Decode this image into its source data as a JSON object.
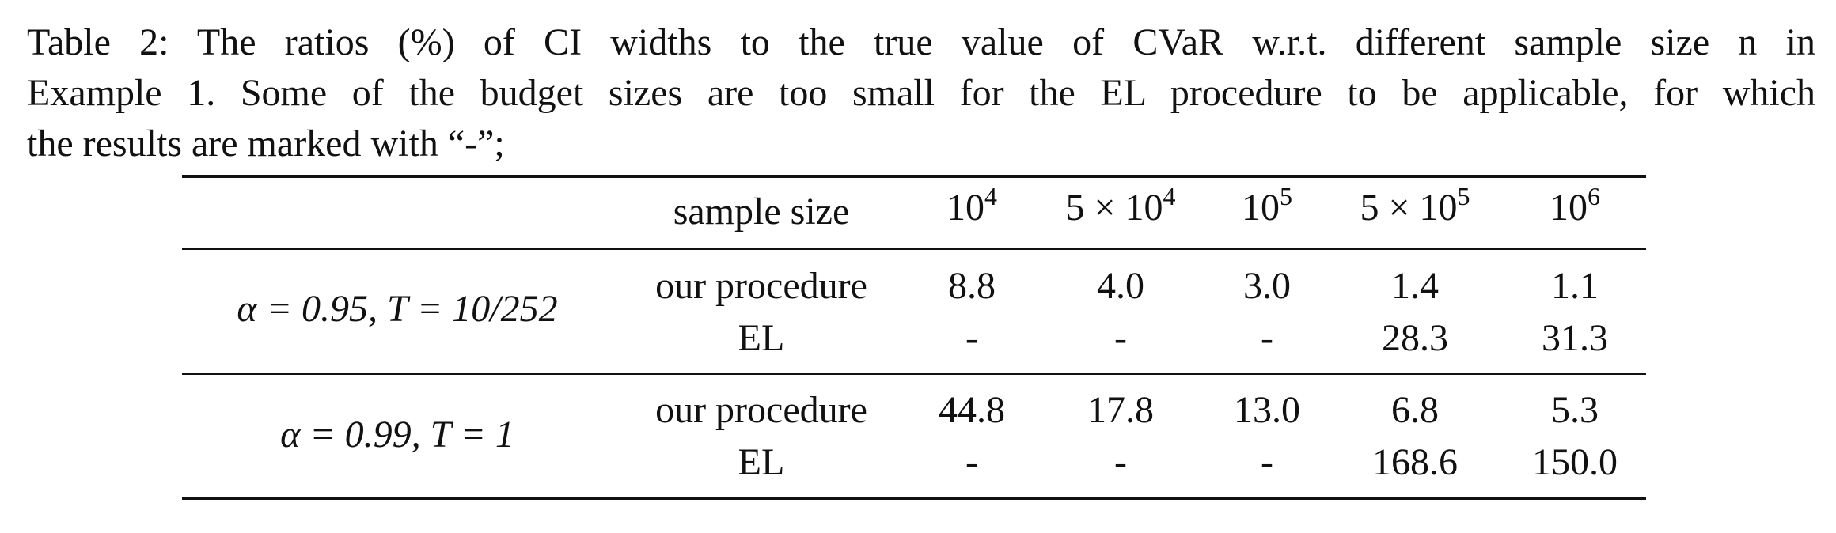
{
  "caption": {
    "line1": "Table 2: The ratios (%) of CI widths to the true value of CVaR w.r.t. different sample size n in",
    "line2": "Example 1. Some of the budget sizes are too small for the EL procedure to be applicable, for which",
    "line3": "the results are marked with “-”;"
  },
  "table": {
    "header": {
      "label": "sample size",
      "cols": [
        {
          "base": "10",
          "exp": "4",
          "prefix": ""
        },
        {
          "base": "10",
          "exp": "4",
          "prefix": "5 × "
        },
        {
          "base": "10",
          "exp": "5",
          "prefix": ""
        },
        {
          "base": "10",
          "exp": "5",
          "prefix": "5 × "
        },
        {
          "base": "10",
          "exp": "6",
          "prefix": ""
        }
      ]
    },
    "groups": [
      {
        "condition": "α = 0.95, T = 10/252",
        "rows": [
          {
            "method": "our procedure",
            "values": [
              "8.8",
              "4.0",
              "3.0",
              "1.4",
              "1.1"
            ]
          },
          {
            "method": "EL",
            "values": [
              "-",
              "-",
              "-",
              "28.3",
              "31.3"
            ]
          }
        ]
      },
      {
        "condition": "α = 0.99, T = 1",
        "rows": [
          {
            "method": "our procedure",
            "values": [
              "44.8",
              "17.8",
              "13.0",
              "6.8",
              "5.3"
            ]
          },
          {
            "method": "EL",
            "values": [
              "-",
              "-",
              "-",
              "168.6",
              "150.0"
            ]
          }
        ]
      }
    ]
  }
}
